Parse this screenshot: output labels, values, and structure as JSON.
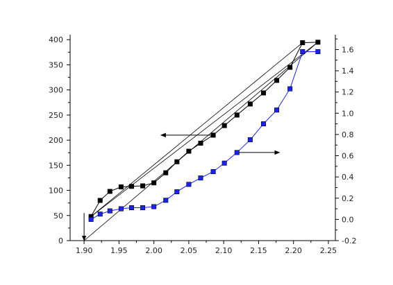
{
  "chart_data": {
    "type": "line",
    "title": "",
    "xlabel": "",
    "ylabel": "",
    "y2label": "",
    "xlim": [
      1.88,
      2.26
    ],
    "ylim": [
      0,
      410
    ],
    "y2lim": [
      -0.2,
      1.74
    ],
    "x_ticks": [
      "1.90",
      "1.95",
      "2.00",
      "2.05",
      "2.10",
      "2.15",
      "2.20",
      "2.25"
    ],
    "y_ticks": [
      "0",
      "50",
      "100",
      "150",
      "200",
      "250",
      "300",
      "350",
      "400"
    ],
    "y2_ticks": [
      "-0.2",
      "0.0",
      "0.2",
      "0.4",
      "0.6",
      "0.8",
      "1.0",
      "1.2",
      "1.4",
      "1.6"
    ],
    "grid": false,
    "legend": "none",
    "series": [
      {
        "axis": "left",
        "color": "#000000",
        "marker": "square",
        "x": [
          1.91,
          1.923,
          1.937,
          1.953,
          1.968,
          1.984,
          2.0,
          2.017,
          2.033,
          2.05,
          2.067,
          2.085,
          2.101,
          2.119,
          2.138,
          2.157,
          2.176,
          2.195,
          2.213,
          2.235
        ],
        "y": [
          48,
          80,
          98,
          107,
          108,
          109,
          115,
          135,
          157,
          178,
          194,
          210,
          229,
          250,
          272,
          294,
          319,
          345,
          394,
          395
        ]
      },
      {
        "axis": "right",
        "color": "#1a22ff",
        "marker": "square",
        "x": [
          1.91,
          1.923,
          1.937,
          1.953,
          1.968,
          1.984,
          2.0,
          2.017,
          2.033,
          2.05,
          2.067,
          2.085,
          2.101,
          2.119,
          2.138,
          2.157,
          2.176,
          2.195,
          2.213,
          2.235
        ],
        "y": [
          0.0,
          0.05,
          0.08,
          0.1,
          0.11,
          0.11,
          0.12,
          0.18,
          0.26,
          0.33,
          0.39,
          0.45,
          0.53,
          0.63,
          0.75,
          0.9,
          1.03,
          1.23,
          1.58,
          1.58
        ]
      }
    ],
    "annotations": [
      {
        "type": "line",
        "axis": "left",
        "x": [
          1.91,
          2.235
        ],
        "y": [
          48,
          395
        ]
      },
      {
        "type": "line",
        "axis": "left",
        "x": [
          1.91,
          2.213
        ],
        "y": [
          48,
          394
        ]
      },
      {
        "type": "line",
        "axis": "left",
        "x": [
          1.9,
          2.235
        ],
        "y": [
          0,
          395
        ]
      },
      {
        "type": "arrow",
        "axis": "left",
        "from": [
          1.9,
          55
        ],
        "to": [
          1.9,
          0
        ]
      },
      {
        "type": "arrow",
        "axis": "left",
        "from": [
          2.085,
          210
        ],
        "to": [
          2.01,
          210
        ]
      },
      {
        "type": "arrow",
        "axis": "right",
        "from": [
          2.119,
          0.63
        ],
        "to": [
          2.18,
          0.63
        ]
      }
    ]
  }
}
